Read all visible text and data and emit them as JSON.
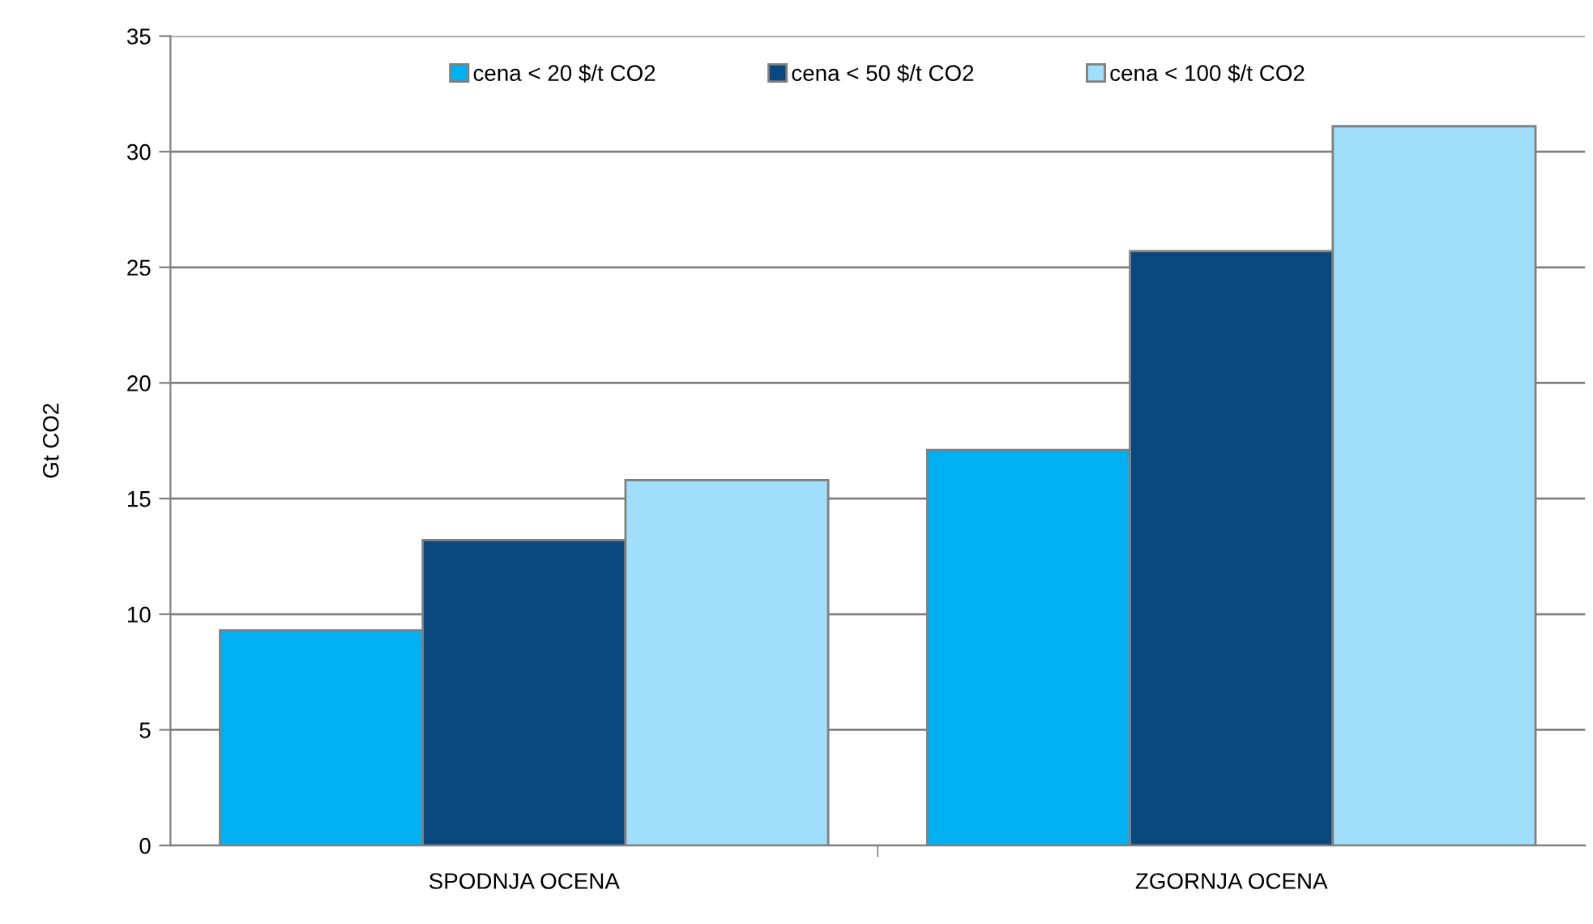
{
  "chart_data": {
    "type": "bar",
    "ylabel": "Gt CO2",
    "categories": [
      "SPODNJA OCENA",
      "ZGORNJA OCENA"
    ],
    "series": [
      {
        "name": "cena < 20 $/t CO2",
        "color": "#00b0f0",
        "values": [
          9.3,
          17.1
        ]
      },
      {
        "name": "cena < 50 $/t CO2",
        "color": "#0a477d",
        "values": [
          13.2,
          25.7
        ]
      },
      {
        "name": "cena < 100 $/t CO2",
        "color": "#a0defc",
        "values": [
          15.8,
          31.1
        ]
      }
    ],
    "ylim": [
      0,
      35
    ],
    "yticks": [
      0,
      5,
      10,
      15,
      20,
      25,
      30,
      35
    ],
    "grid": "y",
    "legend": "top"
  }
}
